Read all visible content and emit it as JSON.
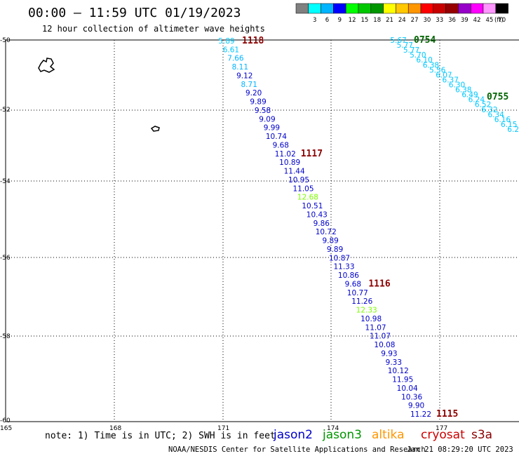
{
  "header": {
    "title": "00:00 – 11:59 UTC 01/19/2023",
    "subtitle": "12 hour collection of altimeter wave heights"
  },
  "colorbar": {
    "colors": [
      "#808080",
      "#00ffff",
      "#00b4ff",
      "#0000ff",
      "#00ff00",
      "#00c800",
      "#009600",
      "#ffff00",
      "#ffc800",
      "#ff9600",
      "#ff0000",
      "#c80000",
      "#960000",
      "#9600c8",
      "#ff00ff",
      "#ff96ff",
      "#000000"
    ],
    "labels": [
      "3",
      "6",
      "9",
      "12",
      "15",
      "18",
      "21",
      "24",
      "27",
      "30",
      "33",
      "36",
      "39",
      "42",
      "45",
      "70"
    ],
    "unit": "(ft)"
  },
  "axes": {
    "lat_labels": [
      "-50",
      "-52",
      "-54",
      "-56",
      "-58",
      "-60"
    ],
    "lon_labels": [
      "165",
      "168",
      "171",
      "174",
      "177"
    ]
  },
  "tracks": [
    {
      "satellite": "jason2",
      "color_hex": "#0000cc",
      "time_label": "1118",
      "values": [
        "5.89",
        "6.61",
        "7.66",
        "8.11",
        "9.12",
        "8.71",
        "9.20",
        "9.89",
        "9.58",
        "9.09",
        "9.99",
        "10.74",
        "9.68",
        "11.02",
        "10.89",
        "11.44",
        "10.95",
        "11.05",
        "12.68",
        "10.51",
        "10.43",
        "9.86",
        "10.72",
        "9.89",
        "9.89",
        "10.87",
        "11.33",
        "10.86",
        "9.68",
        "10.77",
        "11.26",
        "12.33",
        "10.98",
        "11.07",
        "11.07",
        "10.08",
        "9.93",
        "9.33",
        "10.12",
        "11.95",
        "10.04",
        "10.36",
        "9.90",
        "11.22"
      ],
      "time_labels": [
        {
          "text": "1118",
          "color": "#8b0000",
          "after_index": 0
        },
        {
          "text": "1117",
          "color": "#8b0000",
          "after_index": 13
        },
        {
          "text": "1116",
          "color": "#8b0000",
          "after_index": 28
        },
        {
          "text": "1115",
          "color": "#8b0000",
          "after_index": 43
        }
      ]
    },
    {
      "satellite": "jason3",
      "values": [
        "5.67",
        "5.77",
        "5.77",
        "5.70",
        "6.10",
        "6.38",
        "5.56",
        "6.07",
        "6.37",
        "6.30",
        "6.38",
        "6.49",
        "6.24",
        "6.52",
        "6.32",
        "6.34",
        "6.16",
        "6.15",
        "6.25"
      ],
      "time_labels": [
        {
          "text": "0754",
          "color": "#006400"
        },
        {
          "text": "0755",
          "color": "#006400"
        }
      ]
    }
  ],
  "footer": {
    "note": "note: 1) Time is in UTC; 2) SWH is in feet",
    "satellites": [
      {
        "name": "jason2",
        "color": "#0000cc"
      },
      {
        "name": "jason3",
        "color": "#009600"
      },
      {
        "name": "altika",
        "color": "#ff9600"
      },
      {
        "name": "cryosat",
        "color": "#cc0000"
      },
      {
        "name": "s3a",
        "color": "#8b0000"
      }
    ],
    "credit": "NOAA/NESDIS Center for Satellite Applications and Research",
    "timestamp": "Jan 21 08:29:20 UTC 2023"
  }
}
